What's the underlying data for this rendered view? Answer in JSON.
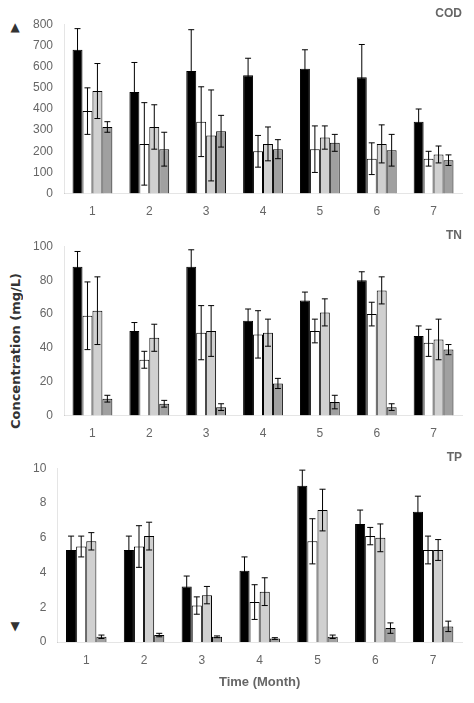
{
  "ylabel": "Concentration (mg/L)",
  "annotations": [
    "▲",
    "▼"
  ],
  "chart_data": [
    {
      "type": "bar",
      "title": "COD",
      "categories": [
        1,
        2,
        3,
        4,
        5,
        6,
        7
      ],
      "series": [
        {
          "color": "#000000",
          "values": [
            680,
            480,
            580,
            560,
            590,
            550,
            340
          ],
          "errors": [
            100,
            140,
            195,
            80,
            90,
            155,
            60
          ]
        },
        {
          "color": "#ffffff",
          "values": [
            390,
            235,
            340,
            200,
            210,
            165,
            165
          ],
          "errors": [
            110,
            195,
            165,
            75,
            110,
            75,
            35
          ]
        },
        {
          "color": "#d0d0d0",
          "values": [
            485,
            315,
            275,
            235,
            265,
            235,
            185
          ],
          "errors": [
            130,
            105,
            215,
            80,
            55,
            90,
            40
          ]
        },
        {
          "color": "#a0a0a0",
          "values": [
            315,
            210,
            295,
            210,
            240,
            205,
            158
          ],
          "errors": [
            25,
            80,
            75,
            45,
            40,
            75,
            25
          ]
        }
      ],
      "ylim": [
        0,
        800
      ],
      "yticks": [
        0,
        100,
        200,
        300,
        400,
        500,
        600,
        700,
        800
      ],
      "grid": false
    },
    {
      "type": "bar",
      "title": "TN",
      "categories": [
        1,
        2,
        3,
        4,
        5,
        6,
        7
      ],
      "series": [
        {
          "color": "#000000",
          "values": [
            88,
            50,
            88,
            56,
            68,
            80,
            47
          ],
          "errors": [
            9,
            5,
            10,
            7,
            5,
            5,
            6
          ]
        },
        {
          "color": "#ffffff",
          "values": [
            59,
            33,
            49,
            48,
            50,
            60,
            43
          ],
          "errors": [
            20,
            5,
            16,
            14,
            7,
            7,
            8
          ]
        },
        {
          "color": "#d0d0d0",
          "values": [
            62,
            46,
            50,
            49,
            61,
            74,
            45
          ],
          "errors": [
            20,
            8,
            15,
            8,
            8,
            8,
            12
          ]
        },
        {
          "color": "#a0a0a0",
          "values": [
            10,
            7,
            5,
            19,
            8,
            5,
            39
          ],
          "errors": [
            2,
            2,
            2,
            3,
            4,
            2,
            3
          ]
        }
      ],
      "ylim": [
        0,
        100
      ],
      "yticks": [
        0,
        20,
        40,
        60,
        80,
        100
      ],
      "grid": false
    },
    {
      "type": "bar",
      "title": "TP",
      "xlabel": "Time (Month)",
      "categories": [
        1,
        2,
        3,
        4,
        5,
        6,
        7
      ],
      "series": [
        {
          "color": "#000000",
          "values": [
            5.3,
            5.3,
            3.2,
            4.1,
            9.0,
            6.8,
            7.5
          ],
          "errors": [
            0.8,
            0.8,
            0.6,
            0.8,
            0.9,
            0.8,
            0.9
          ]
        },
        {
          "color": "#ffffff",
          "values": [
            5.5,
            5.5,
            2.1,
            2.3,
            5.8,
            6.1,
            5.3
          ],
          "errors": [
            0.6,
            1.2,
            0.5,
            1.0,
            1.3,
            0.5,
            0.8
          ]
        },
        {
          "color": "#d0d0d0",
          "values": [
            5.8,
            6.1,
            2.7,
            2.9,
            7.6,
            6.0,
            5.3
          ],
          "errors": [
            0.5,
            0.8,
            0.5,
            0.8,
            1.2,
            0.8,
            0.6
          ]
        },
        {
          "color": "#a0a0a0",
          "values": [
            0.3,
            0.4,
            0.3,
            0.2,
            0.3,
            0.8,
            0.9
          ],
          "errors": [
            0.1,
            0.1,
            0.05,
            0.05,
            0.1,
            0.3,
            0.3
          ]
        }
      ],
      "ylim": [
        0,
        10
      ],
      "yticks": [
        0,
        2,
        4,
        6,
        8,
        10
      ],
      "grid": false
    }
  ]
}
